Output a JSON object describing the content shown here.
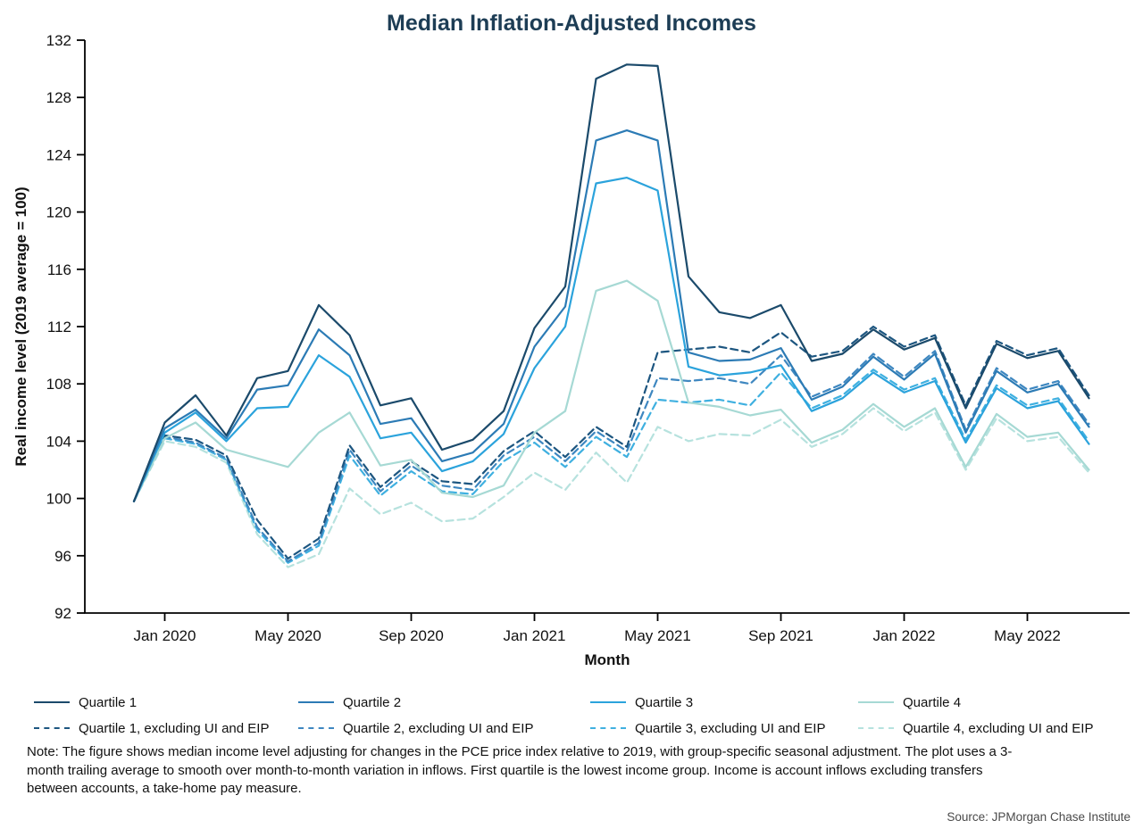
{
  "note": "Note: The figure shows median income level adjusting for changes in the PCE price index relative to 2019, with group-specific seasonal adjustment. The plot uses a 3-month trailing average to smooth over month-to-month variation in inflows. First quartile is the lowest income group. Income is account inflows excluding transfers between accounts, a take-home pay measure.",
  "source": "Source: JPMorgan Chase Institute",
  "chart_data": {
    "type": "line",
    "title": "Median Inflation-Adjusted Incomes",
    "xlabel": "Month",
    "ylabel": "Real income level (2019 average = 100)",
    "ylim": [
      92,
      132
    ],
    "y_ticks": [
      92,
      96,
      100,
      104,
      108,
      112,
      116,
      120,
      124,
      128,
      132
    ],
    "grid": false,
    "legend_position": "bottom",
    "x": [
      "Dec 2019",
      "Jan 2020",
      "Feb 2020",
      "Mar 2020",
      "Apr 2020",
      "May 2020",
      "Jun 2020",
      "Jul 2020",
      "Aug 2020",
      "Sep 2020",
      "Oct 2020",
      "Nov 2020",
      "Dec 2020",
      "Jan 2021",
      "Feb 2021",
      "Mar 2021",
      "Apr 2021",
      "May 2021",
      "Jun 2021",
      "Jul 2021",
      "Aug 2021",
      "Sep 2021",
      "Oct 2021",
      "Nov 2021",
      "Dec 2021",
      "Jan 2022",
      "Feb 2022",
      "Mar 2022",
      "Apr 2022",
      "May 2022",
      "Jun 2022",
      "Jul 2022"
    ],
    "x_tick_positions": [
      1,
      5,
      9,
      13,
      17,
      21,
      25,
      29
    ],
    "x_tick_labels": [
      "Jan 2020",
      "May 2020",
      "Sep 2020",
      "Jan 2021",
      "May 2021",
      "Sep 2021",
      "Jan 2022",
      "May 2022"
    ],
    "series": [
      {
        "name": "Quartile 1",
        "color": "#1b4a6b",
        "dashed": false,
        "values": [
          99.8,
          105.3,
          107.2,
          104.4,
          108.4,
          108.9,
          113.5,
          111.4,
          106.5,
          107.0,
          103.4,
          104.1,
          106.1,
          111.9,
          114.8,
          129.3,
          130.3,
          130.2,
          115.5,
          113.0,
          112.6,
          113.5,
          109.6,
          110.1,
          111.8,
          110.4,
          111.2,
          106.3,
          110.8,
          109.8,
          110.3,
          107.0
        ]
      },
      {
        "name": "Quartile 2",
        "color": "#2c7bb5",
        "dashed": false,
        "values": [
          99.8,
          104.9,
          106.2,
          104.2,
          107.6,
          107.9,
          111.8,
          110.0,
          105.2,
          105.6,
          102.6,
          103.2,
          105.2,
          110.6,
          113.4,
          125.0,
          125.7,
          125.0,
          110.2,
          109.6,
          109.7,
          110.5,
          106.9,
          107.8,
          109.9,
          108.3,
          110.1,
          104.6,
          108.9,
          107.4,
          108.0,
          105.0
        ]
      },
      {
        "name": "Quartile 3",
        "color": "#2ba3dc",
        "dashed": false,
        "values": [
          99.8,
          104.6,
          106.0,
          104.0,
          106.3,
          106.4,
          110.0,
          108.5,
          104.2,
          104.6,
          101.9,
          102.6,
          104.5,
          109.1,
          112.0,
          122.0,
          122.4,
          121.5,
          109.2,
          108.6,
          108.8,
          109.3,
          106.1,
          107.0,
          108.8,
          107.4,
          108.2,
          103.9,
          107.7,
          106.3,
          106.8,
          103.8
        ]
      },
      {
        "name": "Quartile 4",
        "color": "#a6d9d4",
        "dashed": false,
        "values": [
          99.8,
          104.2,
          105.3,
          103.4,
          102.8,
          102.2,
          104.6,
          106.0,
          102.3,
          102.7,
          100.4,
          100.1,
          100.9,
          104.6,
          106.1,
          114.5,
          115.2,
          113.8,
          106.7,
          106.4,
          105.8,
          106.2,
          103.9,
          104.8,
          106.6,
          105.0,
          106.3,
          102.2,
          105.9,
          104.3,
          104.6,
          102.0
        ]
      },
      {
        "name": "Quartile 1, excluding UI and EIP",
        "color": "#1d5680",
        "dashed": true,
        "values": [
          99.8,
          104.4,
          104.1,
          103.0,
          98.5,
          95.8,
          97.2,
          103.7,
          100.8,
          102.6,
          101.2,
          101.0,
          103.3,
          104.7,
          102.9,
          105.0,
          103.6,
          110.2,
          110.4,
          110.6,
          110.2,
          111.6,
          109.9,
          110.3,
          112.0,
          110.6,
          111.4,
          106.5,
          111.0,
          110.0,
          110.5,
          107.2
        ]
      },
      {
        "name": "Quartile 2, excluding UI and EIP",
        "color": "#3e87c0",
        "dashed": true,
        "values": [
          99.8,
          104.3,
          103.9,
          102.8,
          98.0,
          95.6,
          96.9,
          103.4,
          100.5,
          102.3,
          100.9,
          100.6,
          103.0,
          104.3,
          102.6,
          104.7,
          103.3,
          108.4,
          108.2,
          108.4,
          108.0,
          110.0,
          107.1,
          108.0,
          110.1,
          108.5,
          110.3,
          104.8,
          109.1,
          107.6,
          108.2,
          105.2
        ]
      },
      {
        "name": "Quartile 3, excluding UI and EIP",
        "color": "#3fb0e0",
        "dashed": true,
        "values": [
          99.8,
          104.2,
          103.8,
          102.7,
          97.8,
          95.5,
          96.7,
          103.0,
          100.2,
          101.9,
          100.5,
          100.3,
          102.6,
          103.9,
          102.2,
          104.3,
          102.9,
          106.9,
          106.7,
          106.9,
          106.5,
          108.8,
          106.3,
          107.2,
          109.0,
          107.6,
          108.4,
          104.1,
          107.9,
          106.5,
          107.0,
          104.0
        ]
      },
      {
        "name": "Quartile 4, excluding UI and EIP",
        "color": "#b6e2de",
        "dashed": true,
        "values": [
          99.8,
          104.0,
          103.6,
          102.5,
          97.5,
          95.2,
          96.1,
          100.7,
          98.9,
          99.7,
          98.4,
          98.6,
          100.1,
          101.8,
          100.6,
          103.2,
          101.1,
          105.0,
          104.0,
          104.5,
          104.4,
          105.5,
          103.6,
          104.5,
          106.3,
          104.7,
          106.0,
          102.0,
          105.6,
          104.0,
          104.3,
          101.8
        ]
      }
    ]
  }
}
